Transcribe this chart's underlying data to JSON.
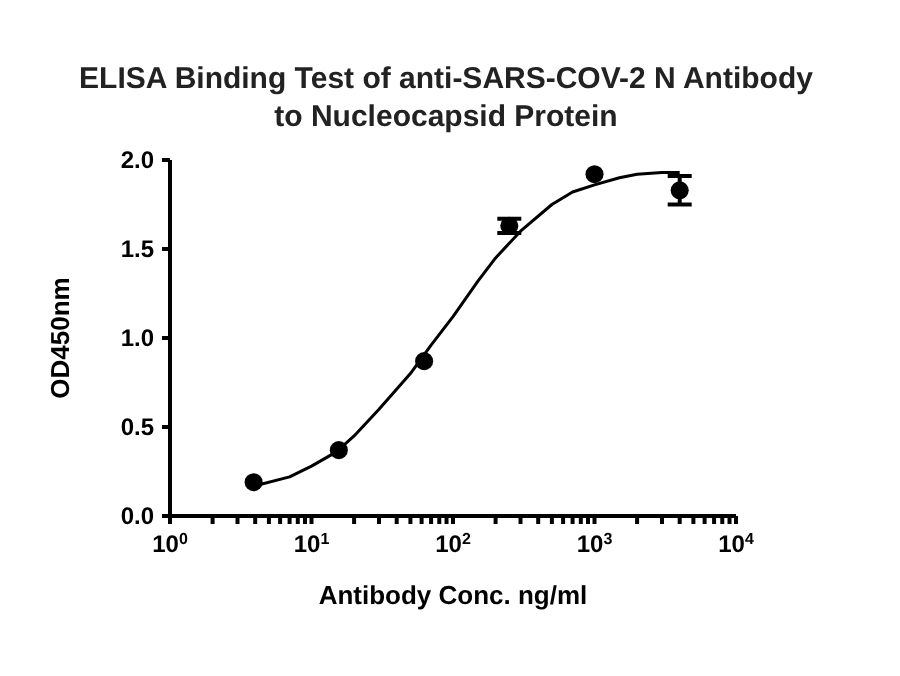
{
  "chart_data": {
    "type": "scatter",
    "title": "ELISA Binding Test of anti-SARS-COV-2 N Antibody\nto Nucleocapsid Protein",
    "xlabel": "Antibody Conc. ng/ml",
    "ylabel": "OD450nm",
    "log": "x",
    "xlim": [
      1,
      10000
    ],
    "xticks": [
      {
        "value": 1,
        "label": "10$^{0}$"
      },
      {
        "value": 2,
        "label": null
      },
      {
        "value": 3,
        "label": null
      },
      {
        "value": 4,
        "label": null
      },
      {
        "value": 5,
        "label": null
      },
      {
        "value": 6,
        "label": null
      },
      {
        "value": 7,
        "label": null
      },
      {
        "value": 8,
        "label": null
      },
      {
        "value": 9,
        "label": null
      },
      {
        "value": 10,
        "label": "10$^{1}$"
      },
      {
        "value": 20,
        "label": null
      },
      {
        "value": 30,
        "label": null
      },
      {
        "value": 40,
        "label": null
      },
      {
        "value": 50,
        "label": null
      },
      {
        "value": 60,
        "label": null
      },
      {
        "value": 70,
        "label": null
      },
      {
        "value": 80,
        "label": null
      },
      {
        "value": 90,
        "label": null
      },
      {
        "value": 100,
        "label": "10$^{2}$"
      },
      {
        "value": 200,
        "label": null
      },
      {
        "value": 300,
        "label": null
      },
      {
        "value": 400,
        "label": null
      },
      {
        "value": 500,
        "label": null
      },
      {
        "value": 600,
        "label": null
      },
      {
        "value": 700,
        "label": null
      },
      {
        "value": 800,
        "label": null
      },
      {
        "value": 900,
        "label": null
      },
      {
        "value": 1000,
        "label": "10$^{3}$"
      },
      {
        "value": 2000,
        "label": null
      },
      {
        "value": 3000,
        "label": null
      },
      {
        "value": 4000,
        "label": null
      },
      {
        "value": 5000,
        "label": null
      },
      {
        "value": 6000,
        "label": null
      },
      {
        "value": 7000,
        "label": null
      },
      {
        "value": 8000,
        "label": null
      },
      {
        "value": 9000,
        "label": null
      },
      {
        "value": 10000,
        "label": "10$^{4}$"
      }
    ],
    "ylim": [
      0,
      2
    ],
    "yticks": [
      {
        "value": 0,
        "label": "0.0"
      },
      {
        "value": 0.5,
        "label": "0.5"
      },
      {
        "value": 1,
        "label": "1.0"
      },
      {
        "value": 1.5,
        "label": "1.5"
      },
      {
        "value": 2,
        "label": "2.0"
      }
    ],
    "series": [
      {
        "marker": "circle",
        "color": "#000000",
        "x": [
          3.9,
          15.6,
          62.5,
          250,
          1000,
          4000
        ],
        "values": [
          0.19,
          0.37,
          0.87,
          1.63,
          1.92,
          1.83
        ],
        "errors": [
          null,
          null,
          null,
          0.04,
          null,
          0.08
        ]
      },
      {
        "type": "line",
        "marker": "none",
        "color": "#000000",
        "x": [
          4,
          7,
          10,
          15,
          20,
          30,
          50,
          70,
          100,
          150,
          200,
          300,
          500,
          700,
          1000,
          1500,
          2000,
          3000,
          4000
        ],
        "values": [
          0.17,
          0.22,
          0.28,
          0.36,
          0.45,
          0.6,
          0.8,
          0.96,
          1.12,
          1.32,
          1.45,
          1.6,
          1.75,
          1.82,
          1.86,
          1.9,
          1.92,
          1.93,
          1.93
        ]
      }
    ]
  }
}
